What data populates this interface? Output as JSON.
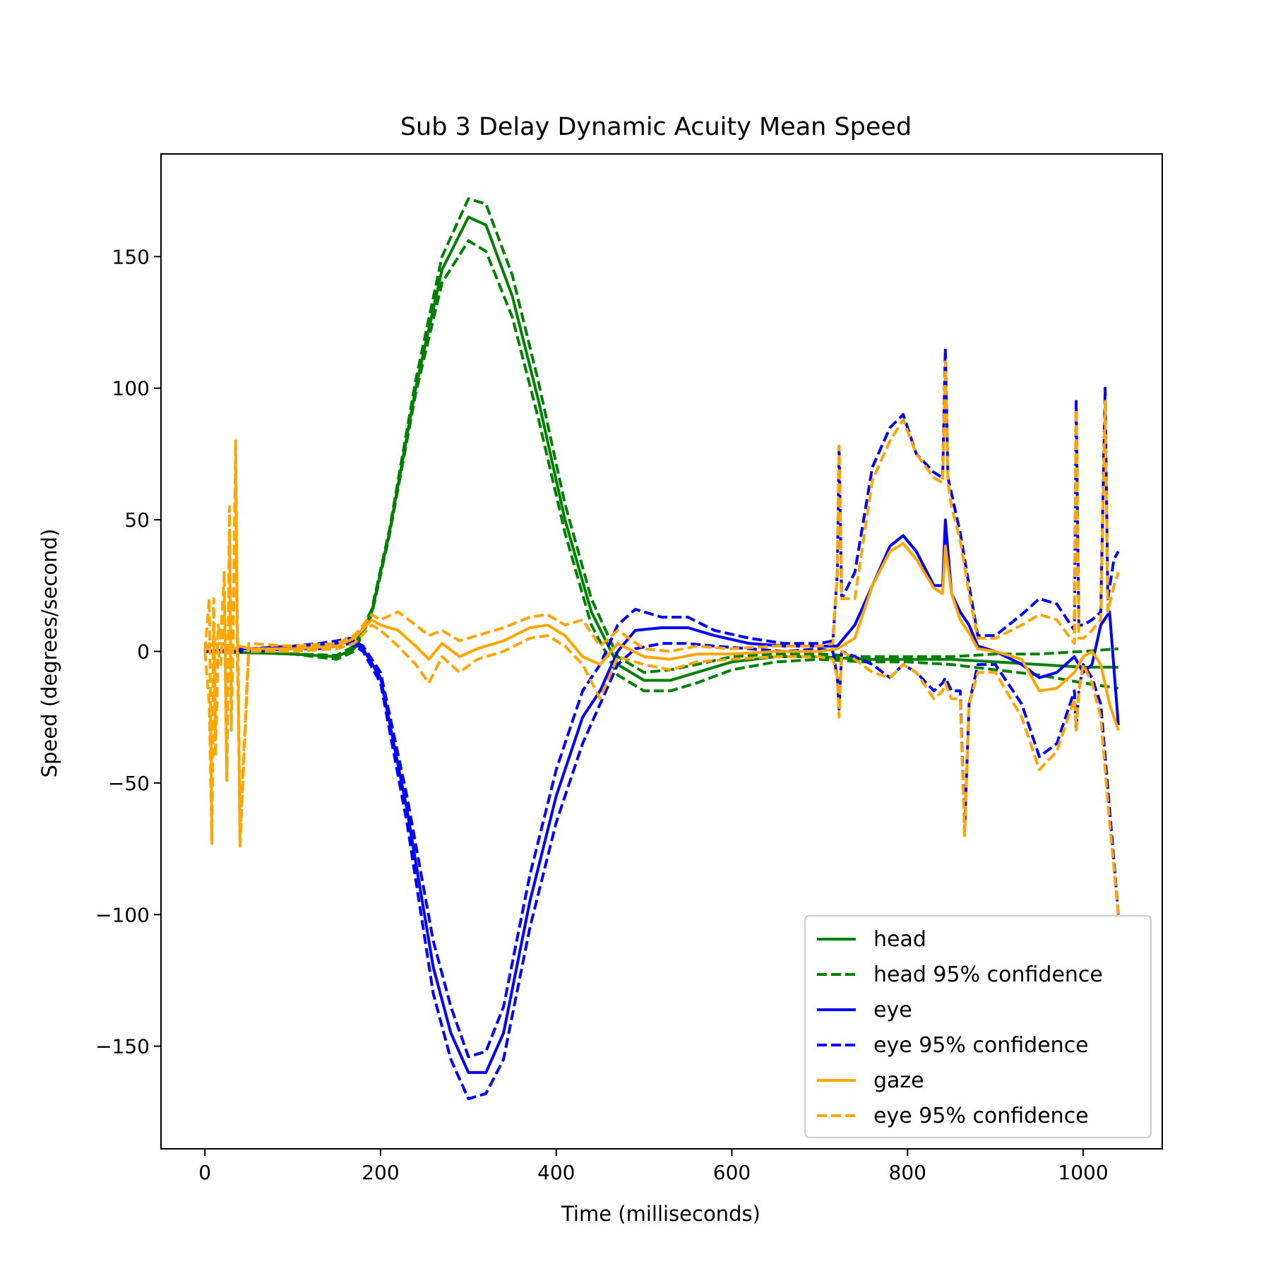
{
  "chart_data": {
    "type": "line",
    "title": "Sub 3 Delay Dynamic Acuity Mean Speed",
    "xlabel": "Time (milliseconds)",
    "ylabel": "Speed (degrees/second)",
    "xlim": [
      -50,
      1090
    ],
    "ylim": [
      -189,
      189
    ],
    "xticks": [
      0,
      200,
      400,
      600,
      800,
      1000
    ],
    "yticks": [
      -150,
      -100,
      -50,
      0,
      50,
      100,
      150
    ],
    "xtick_labels": [
      "0",
      "200",
      "400",
      "600",
      "800",
      "1000"
    ],
    "ytick_labels": [
      "−150",
      "−100",
      "−50",
      "0",
      "50",
      "100",
      "150"
    ],
    "grid": false,
    "legend_position": "lower-right",
    "series": [
      {
        "name": "head",
        "color": "#008000",
        "style": "solid",
        "x": [
          0,
          50,
          100,
          150,
          170,
          190,
          210,
          240,
          270,
          300,
          320,
          350,
          380,
          410,
          440,
          470,
          500,
          530,
          560,
          600,
          650,
          700,
          750,
          800,
          850,
          900,
          950,
          1000,
          1040
        ],
        "y": [
          0,
          -0.5,
          -1,
          -2,
          1,
          15,
          45,
          100,
          145,
          165,
          162,
          135,
          95,
          50,
          15,
          -5,
          -11,
          -11,
          -8,
          -4,
          -2,
          -2,
          -3,
          -3,
          -3,
          -4,
          -5,
          -6,
          -6
        ]
      },
      {
        "name": "head 95% confidence",
        "color": "#008000",
        "style": "dashed",
        "x": [
          0,
          50,
          100,
          150,
          170,
          190,
          210,
          240,
          270,
          300,
          320,
          350,
          380,
          410,
          440,
          470,
          500,
          530,
          560,
          600,
          650,
          700,
          750,
          800,
          850,
          900,
          950,
          1000,
          1040
        ],
        "y": [
          0,
          -0.5,
          -1,
          -1.5,
          2,
          16,
          46,
          103,
          150,
          172,
          170,
          143,
          102,
          56,
          20,
          -2,
          -8,
          -7,
          -5,
          -2,
          -1,
          -1,
          -2,
          -2,
          -2,
          -1,
          -1,
          0,
          1
        ]
      },
      {
        "name": "head 95% confidence",
        "color": "#008000",
        "style": "dashed",
        "x": [
          0,
          50,
          100,
          150,
          170,
          190,
          210,
          240,
          270,
          300,
          320,
          350,
          380,
          410,
          440,
          470,
          500,
          530,
          560,
          600,
          650,
          700,
          750,
          800,
          850,
          900,
          950,
          1000,
          1040
        ],
        "y": [
          0,
          -0.5,
          -1,
          -3,
          0,
          14,
          44,
          98,
          140,
          156,
          152,
          127,
          88,
          45,
          10,
          -9,
          -15,
          -15,
          -12,
          -7,
          -4,
          -3,
          -4,
          -4,
          -5,
          -7,
          -9,
          -12,
          -14
        ]
      },
      {
        "name": "eye",
        "color": "#0000ff",
        "style": "solid",
        "x": [
          0,
          50,
          100,
          130,
          150,
          165,
          180,
          200,
          230,
          260,
          280,
          300,
          320,
          340,
          370,
          400,
          430,
          450,
          470,
          490,
          520,
          550,
          580,
          620,
          660,
          700,
          720,
          740,
          760,
          780,
          795,
          810,
          830,
          840,
          843,
          850,
          860,
          870,
          880,
          900,
          930,
          950,
          970,
          990,
          1000,
          1010,
          1020,
          1030,
          1040
        ],
        "y": [
          0,
          1,
          1.5,
          2,
          3,
          4,
          1,
          -10,
          -60,
          -120,
          -145,
          -160,
          -160,
          -145,
          -95,
          -55,
          -25,
          -15,
          0,
          8,
          9,
          9,
          6,
          3,
          2,
          2,
          2,
          10,
          25,
          40,
          44,
          38,
          25,
          25,
          50,
          22,
          15,
          10,
          2,
          0,
          -5,
          -10,
          -8,
          -2,
          -8,
          -5,
          10,
          15,
          -28
        ]
      },
      {
        "name": "eye 95% confidence",
        "color": "#0000ff",
        "style": "dashed",
        "x": [
          0,
          50,
          100,
          130,
          150,
          165,
          180,
          200,
          230,
          260,
          280,
          300,
          320,
          340,
          370,
          400,
          430,
          450,
          470,
          490,
          520,
          550,
          580,
          620,
          660,
          700,
          715,
          720,
          722,
          725,
          740,
          760,
          780,
          795,
          810,
          830,
          840,
          843,
          846,
          850,
          860,
          870,
          880,
          900,
          930,
          950,
          970,
          990,
          992,
          995,
          1000,
          1010,
          1020,
          1025,
          1028,
          1035,
          1040
        ],
        "y": [
          0,
          1,
          2,
          3,
          4,
          5,
          2,
          -8,
          -55,
          -110,
          -135,
          -154,
          -152,
          -135,
          -85,
          -45,
          -15,
          -5,
          10,
          16,
          13,
          13,
          8,
          5,
          3,
          3,
          4,
          30,
          78,
          20,
          30,
          70,
          85,
          90,
          75,
          68,
          66,
          115,
          66,
          60,
          45,
          25,
          6,
          6,
          14,
          20,
          18,
          8,
          95,
          10,
          10,
          12,
          15,
          100,
          20,
          35,
          38
        ]
      },
      {
        "name": "eye 95% confidence",
        "color": "#0000ff",
        "style": "dashed",
        "x": [
          0,
          50,
          100,
          130,
          150,
          165,
          180,
          200,
          230,
          260,
          280,
          300,
          320,
          340,
          370,
          400,
          430,
          450,
          470,
          490,
          520,
          550,
          580,
          620,
          660,
          700,
          715,
          720,
          722,
          725,
          740,
          760,
          780,
          795,
          810,
          830,
          840,
          843,
          850,
          860,
          865,
          870,
          880,
          900,
          930,
          950,
          970,
          990,
          992,
          995,
          1000,
          1010,
          1020,
          1030,
          1040
        ],
        "y": [
          0,
          0,
          1,
          1,
          2,
          3,
          0,
          -12,
          -65,
          -130,
          -155,
          -170,
          -168,
          -155,
          -105,
          -65,
          -35,
          -20,
          -5,
          1,
          3,
          3,
          2,
          1,
          0,
          1,
          0,
          -10,
          -22,
          0,
          -2,
          -5,
          -10,
          -5,
          -8,
          -15,
          -12,
          -10,
          -15,
          -15,
          -68,
          -20,
          -5,
          -5,
          -20,
          -40,
          -35,
          -15,
          -30,
          -15,
          -5,
          -10,
          -20,
          -60,
          -100
        ]
      },
      {
        "name": "gaze",
        "color": "#ffa500",
        "style": "solid",
        "x": [
          0,
          5,
          10,
          15,
          20,
          25,
          30,
          35,
          40,
          50,
          100,
          150,
          170,
          190,
          200,
          220,
          240,
          255,
          270,
          290,
          310,
          340,
          370,
          390,
          410,
          430,
          450,
          470,
          500,
          530,
          560,
          600,
          650,
          700,
          720,
          740,
          760,
          780,
          795,
          810,
          830,
          840,
          843,
          850,
          860,
          870,
          880,
          900,
          930,
          950,
          970,
          990,
          1000,
          1010,
          1020,
          1030,
          1040
        ],
        "y": [
          0,
          3,
          2,
          3,
          3,
          2,
          2,
          1,
          2,
          1,
          1,
          2,
          5,
          12,
          10,
          8,
          2,
          -3,
          3,
          -2,
          1,
          4,
          9,
          10,
          6,
          -2,
          -5,
          3,
          -2,
          -3,
          -1,
          -1,
          0,
          0,
          1,
          5,
          25,
          38,
          41,
          35,
          24,
          22,
          40,
          22,
          12,
          7,
          1,
          0,
          -3,
          -15,
          -14,
          -8,
          -2,
          0,
          -5,
          -20,
          -30
        ]
      },
      {
        "name": "eye 95% confidence",
        "color": "#ffa500",
        "style": "dashed",
        "x": [
          0,
          5,
          8,
          10,
          12,
          15,
          18,
          22,
          25,
          28,
          30,
          33,
          35,
          37,
          38,
          40,
          50,
          100,
          150,
          170,
          190,
          200,
          220,
          240,
          255,
          270,
          290,
          310,
          340,
          370,
          390,
          410,
          430,
          450,
          470,
          500,
          530,
          560,
          600,
          650,
          700,
          715,
          720,
          722,
          725,
          740,
          760,
          780,
          795,
          810,
          830,
          840,
          843,
          846,
          850,
          860,
          870,
          880,
          900,
          930,
          950,
          970,
          990,
          992,
          995,
          1000,
          1010,
          1020,
          1025,
          1028,
          1035,
          1040
        ],
        "y": [
          0,
          20,
          -70,
          20,
          -30,
          10,
          5,
          30,
          -48,
          55,
          -20,
          30,
          80,
          10,
          -10,
          -70,
          3,
          2,
          3,
          6,
          14,
          12,
          15,
          10,
          6,
          8,
          4,
          6,
          9,
          13,
          14,
          10,
          12,
          2,
          8,
          1,
          0,
          2,
          1,
          2,
          2,
          3,
          30,
          78,
          20,
          20,
          65,
          80,
          88,
          75,
          66,
          64,
          110,
          64,
          55,
          42,
          22,
          5,
          5,
          10,
          14,
          12,
          3,
          92,
          5,
          5,
          8,
          12,
          95,
          15,
          25,
          30
        ]
      },
      {
        "name": "eye 95% confidence",
        "color": "#ffa500",
        "style": "dashed",
        "x": [
          0,
          5,
          8,
          10,
          12,
          15,
          18,
          22,
          25,
          28,
          30,
          33,
          35,
          37,
          38,
          40,
          50,
          100,
          150,
          170,
          190,
          200,
          220,
          240,
          255,
          270,
          290,
          310,
          340,
          370,
          390,
          410,
          430,
          450,
          470,
          500,
          530,
          560,
          600,
          650,
          700,
          715,
          720,
          722,
          725,
          740,
          760,
          780,
          795,
          810,
          830,
          840,
          843,
          850,
          860,
          865,
          870,
          880,
          900,
          930,
          950,
          970,
          990,
          992,
          995,
          1000,
          1010,
          1020,
          1030,
          1040
        ],
        "y": [
          0,
          -20,
          -74,
          10,
          -40,
          0,
          -5,
          20,
          -50,
          45,
          -30,
          20,
          70,
          -5,
          -20,
          -74,
          0,
          0,
          1,
          3,
          10,
          8,
          2,
          -5,
          -12,
          -2,
          -8,
          -3,
          0,
          5,
          6,
          2,
          -5,
          -18,
          -2,
          -5,
          -7,
          -4,
          -3,
          -2,
          -2,
          -3,
          -10,
          -25,
          0,
          -3,
          -8,
          -10,
          -5,
          -8,
          -18,
          -15,
          -12,
          -18,
          -18,
          -70,
          -20,
          -8,
          -8,
          -25,
          -45,
          -38,
          -18,
          -30,
          -15,
          -5,
          -12,
          -25,
          -65,
          -100
        ]
      }
    ]
  }
}
